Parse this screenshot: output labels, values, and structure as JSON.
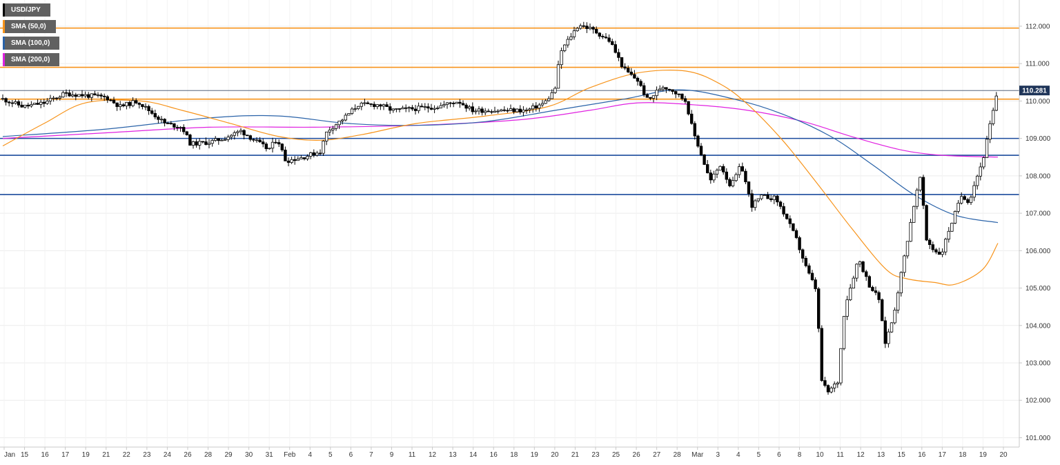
{
  "chart_data": {
    "type": "candlestick",
    "symbol": "USD/JPY",
    "ylim": [
      100.75,
      112.7
    ],
    "y_ticks": [
      "101.000",
      "102.000",
      "103.000",
      "104.000",
      "105.000",
      "106.000",
      "107.000",
      "108.000",
      "109.000",
      "110.000",
      "111.000",
      "112.000"
    ],
    "current_price": "110.281",
    "legend": [
      {
        "label": "USD/JPY",
        "color": "#000000"
      },
      {
        "label": "SMA (50,0)",
        "color": "#f7931a"
      },
      {
        "label": "SMA (100,0)",
        "color": "#2962a8"
      },
      {
        "label": "SMA (200,0)",
        "color": "#e020e0"
      }
    ],
    "x_labels": [
      "Jan",
      "15",
      "16",
      "17",
      "19",
      "21",
      "22",
      "23",
      "24",
      "26",
      "28",
      "29",
      "30",
      "31",
      "Feb",
      "4",
      "5",
      "6",
      "7",
      "9",
      "11",
      "12",
      "13",
      "14",
      "16",
      "18",
      "19",
      "20",
      "21",
      "23",
      "25",
      "26",
      "27",
      "28",
      "Mar",
      "3",
      "4",
      "5",
      "6",
      "8",
      "10",
      "11",
      "12",
      "13",
      "15",
      "16",
      "17",
      "18",
      "19",
      "20"
    ],
    "horizontal_levels": {
      "resistance": [
        111.95,
        110.9,
        110.05
      ],
      "support": [
        109.0,
        108.55,
        107.5
      ]
    },
    "sma50": [
      [
        0,
        108.8
      ],
      [
        60,
        109.4
      ],
      [
        120,
        109.95
      ],
      [
        200,
        110.0
      ],
      [
        260,
        109.75
      ],
      [
        330,
        109.4
      ],
      [
        400,
        109.05
      ],
      [
        460,
        108.95
      ],
      [
        520,
        109.1
      ],
      [
        600,
        109.4
      ],
      [
        700,
        109.6
      ],
      [
        790,
        109.85
      ],
      [
        850,
        110.35
      ],
      [
        920,
        110.75
      ],
      [
        990,
        110.8
      ],
      [
        1040,
        110.45
      ],
      [
        1080,
        109.9
      ],
      [
        1130,
        108.95
      ],
      [
        1180,
        107.8
      ],
      [
        1230,
        106.6
      ],
      [
        1280,
        105.5
      ],
      [
        1310,
        105.25
      ],
      [
        1350,
        105.15
      ],
      [
        1380,
        105.1
      ],
      [
        1420,
        105.5
      ],
      [
        1442,
        106.2
      ]
    ],
    "sma100": [
      [
        0,
        109.05
      ],
      [
        150,
        109.25
      ],
      [
        300,
        109.55
      ],
      [
        400,
        109.6
      ],
      [
        500,
        109.4
      ],
      [
        600,
        109.35
      ],
      [
        700,
        109.45
      ],
      [
        800,
        109.75
      ],
      [
        900,
        110.05
      ],
      [
        980,
        110.3
      ],
      [
        1060,
        110.05
      ],
      [
        1130,
        109.65
      ],
      [
        1200,
        109.05
      ],
      [
        1260,
        108.3
      ],
      [
        1320,
        107.5
      ],
      [
        1380,
        106.95
      ],
      [
        1442,
        106.75
      ]
    ],
    "sma200": [
      [
        0,
        109.0
      ],
      [
        150,
        109.15
      ],
      [
        300,
        109.3
      ],
      [
        450,
        109.3
      ],
      [
        600,
        109.35
      ],
      [
        750,
        109.5
      ],
      [
        850,
        109.75
      ],
      [
        920,
        109.95
      ],
      [
        1000,
        109.9
      ],
      [
        1080,
        109.75
      ],
      [
        1160,
        109.45
      ],
      [
        1230,
        109.05
      ],
      [
        1300,
        108.7
      ],
      [
        1360,
        108.55
      ],
      [
        1442,
        108.5
      ]
    ],
    "price_path": [
      [
        0,
        110.05
      ],
      [
        30,
        109.85
      ],
      [
        60,
        109.95
      ],
      [
        90,
        110.2
      ],
      [
        120,
        110.15
      ],
      [
        150,
        110.1
      ],
      [
        170,
        109.85
      ],
      [
        195,
        110.0
      ],
      [
        215,
        109.7
      ],
      [
        235,
        109.4
      ],
      [
        260,
        109.3
      ],
      [
        272,
        108.85
      ],
      [
        300,
        108.9
      ],
      [
        320,
        109.0
      ],
      [
        345,
        109.2
      ],
      [
        365,
        108.95
      ],
      [
        385,
        108.7
      ],
      [
        398,
        109.0
      ],
      [
        410,
        108.4
      ],
      [
        435,
        108.5
      ],
      [
        460,
        108.65
      ],
      [
        470,
        109.2
      ],
      [
        495,
        109.55
      ],
      [
        515,
        109.9
      ],
      [
        545,
        109.9
      ],
      [
        565,
        109.75
      ],
      [
        600,
        109.8
      ],
      [
        630,
        109.85
      ],
      [
        660,
        110.0
      ],
      [
        680,
        109.75
      ],
      [
        720,
        109.75
      ],
      [
        760,
        109.75
      ],
      [
        785,
        109.95
      ],
      [
        800,
        110.3
      ],
      [
        808,
        111.3
      ],
      [
        820,
        111.65
      ],
      [
        835,
        112.05
      ],
      [
        855,
        111.9
      ],
      [
        880,
        111.6
      ],
      [
        900,
        110.85
      ],
      [
        920,
        110.55
      ],
      [
        935,
        110.0
      ],
      [
        955,
        110.4
      ],
      [
        970,
        110.3
      ],
      [
        990,
        110.0
      ],
      [
        1000,
        109.2
      ],
      [
        1010,
        108.7
      ],
      [
        1025,
        107.85
      ],
      [
        1040,
        108.3
      ],
      [
        1055,
        107.7
      ],
      [
        1070,
        108.3
      ],
      [
        1085,
        107.2
      ],
      [
        1100,
        107.45
      ],
      [
        1120,
        107.4
      ],
      [
        1135,
        106.9
      ],
      [
        1150,
        106.3
      ],
      [
        1165,
        105.5
      ],
      [
        1180,
        104.9
      ],
      [
        1185,
        102.6
      ],
      [
        1195,
        102.2
      ],
      [
        1210,
        102.5
      ],
      [
        1220,
        104.5
      ],
      [
        1228,
        105.0
      ],
      [
        1240,
        105.8
      ],
      [
        1255,
        105.1
      ],
      [
        1270,
        104.7
      ],
      [
        1278,
        103.5
      ],
      [
        1290,
        104.2
      ],
      [
        1300,
        105.2
      ],
      [
        1310,
        106.2
      ],
      [
        1320,
        107.2
      ],
      [
        1330,
        108.0
      ],
      [
        1338,
        106.3
      ],
      [
        1350,
        106.0
      ],
      [
        1360,
        105.9
      ],
      [
        1370,
        106.5
      ],
      [
        1380,
        107.0
      ],
      [
        1390,
        107.5
      ],
      [
        1400,
        107.3
      ],
      [
        1410,
        107.9
      ],
      [
        1420,
        108.4
      ],
      [
        1430,
        109.3
      ],
      [
        1442,
        110.28
      ]
    ]
  }
}
